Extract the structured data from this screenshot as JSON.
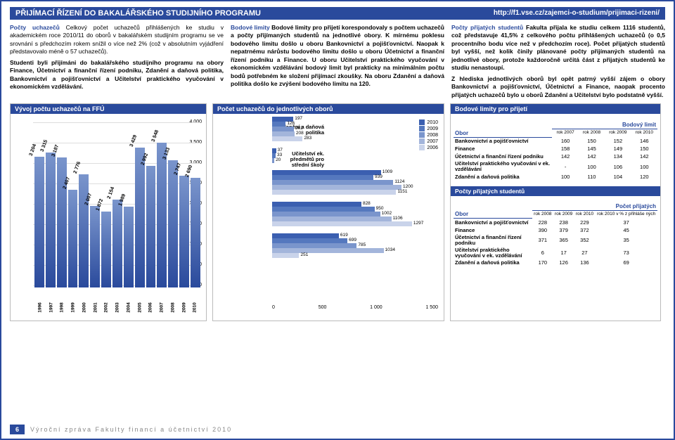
{
  "header": {
    "title": "PŘIJÍMACÍ ŘÍZENÍ DO BAKALÁŘSKÉHO STUDIJNÍHO PROGRAMU",
    "url": "http://f1.vse.cz/zajemci-o-studium/prijimaci-rizeni/"
  },
  "para1_lead": "Počty uchazečů",
  "para1": " Celkový počet uchazečů přihlášených ke studiu v akademickém roce 2010/11 do oborů v bakalářském studijním programu se ve srovnání s předchozím rokem snížil o více než 2% (což v absolutním vyjádření představovalo méně o 57 uchazečů).",
  "para1b": "Studenti byli přijímáni do bakalářského studijního programu na obory Finance, Účetnictví a finanční řízení podniku, Zdanění a daňová politika, Bankovnictví a pojišťovnictví a Učitelství praktického vyučování v ekonomickém vzdělávání.",
  "para2_lead": "Bodové limity",
  "para2": " Bodové limity pro přijetí korespondovaly s počtem uchazečů a počty přijímaných studentů na jednotlivé obory. K mírnému poklesu bodového limitu došlo u oboru Bankovnictví a pojišťovnictví. Naopak k nepatrnému nárůstu bodového limitu došlo u oboru Účetnictví a finanční řízení podniku a Finance. U oboru Učitelství praktického vyučování v ekonomickém vzdělávání bodový limit byl prakticky na minimálním počtu bodů potřebném ke složení přijímací zkoušky. Na oboru Zdanění a daňová politika došlo ke zvýšení bodového limitu na 120.",
  "para3_lead": "Počty přijatých studentů",
  "para3": " Fakulta přijala ke studiu celkem 1116 studentů, což představuje 41,5% z celkového počtu přihlášených uchazečů (o 0,5 procentního bodu více než v předchozím roce). Počet přijatých studentů byl vyšší, než kolik činily plánované počty přijímaných studentů na jednotlivé obory, protože každoročně určitá část z přijatých studentů ke studiu nenastoupí.",
  "para3b": "Z hlediska jednotlivých oborů byl opět patrný vyšší zájem o obory Bankovnictví a pojišťovnictví, Účetnictví a Finance, naopak procento přijatých uchazečů bylo u oborů Zdanění a Učitelství bylo podstatně vyšší.",
  "panel_left_title": "Vývoj počtu uchazečů na FFÚ",
  "panel_mid_title": "Počet uchazečů do jednotlivých oborů",
  "panel_r1_title": "Bodové limity pro přijetí",
  "panel_r2_title": "Počty přijatých studentů",
  "bar_chart": {
    "ymax": 4000,
    "ystep": 500,
    "years": [
      "1996",
      "1997",
      "1998",
      "1999",
      "2000",
      "2001",
      "2002",
      "2003",
      "2004",
      "2005",
      "2006",
      "2007",
      "2008",
      "2009",
      "2010"
    ],
    "values": [
      3204,
      3315,
      3187,
      2407,
      2776,
      2007,
      1872,
      2154,
      1989,
      3429,
      2992,
      3548,
      3133,
      2747,
      2690
    ],
    "bar_color": "#2a4a9c"
  },
  "hbar_chart": {
    "xmax": 1500,
    "categories": [
      "Zdanění a daňová politika",
      "Učitelství ek. předmětů pro střední školy",
      "Účetnictví a finanční řízení podniku",
      "Finance",
      "Bankovnictví a pojišťovnictví"
    ],
    "years": [
      "2010",
      "2009",
      "2008",
      "2007",
      "2006"
    ],
    "colors": {
      "2010": "#3b5fb0",
      "2009": "#5578be",
      "2008": "#7a95cc",
      "2007": "#a3b5db",
      "2006": "#c9d3ea"
    },
    "data": {
      "Zdanění a daňová politika": {
        "2010": 197,
        "2009": 126,
        "2008": 202,
        "2007": 208,
        "2006": 283
      },
      "Učitelství ek. předmětů pro střední školy": {
        "2010": 37,
        "2009": 33,
        "2008": 20
      },
      "Účetnictví a finanční řízení podniku": {
        "2010": 1009,
        "2009": 939,
        "2008": 1124,
        "2007": 1200,
        "2006": 1151
      },
      "Finance": {
        "2010": 828,
        "2009": 950,
        "2008": 1002,
        "2007": 1106,
        "2006": 1297
      },
      "Bankovnictví a pojišťovnictví": {
        "2010": 619,
        "2009": 699,
        "2008": 785,
        "2007": 1034,
        "2006": 251
      }
    }
  },
  "limits_table": {
    "header_right": "Bodový limit",
    "col_obor": "Obor",
    "years": [
      "rok 2007",
      "rok 2008",
      "rok 2009",
      "rok 2010"
    ],
    "rows": [
      [
        "Bankovnictví a pojišťovnictví",
        "160",
        "150",
        "152",
        "146"
      ],
      [
        "Finance",
        "158",
        "145",
        "149",
        "150"
      ],
      [
        "Účetnictví a finanční řízení podniku",
        "142",
        "142",
        "134",
        "142"
      ],
      [
        "Učitelství praktického vyučování v ek. vzdělávání",
        "-",
        "100",
        "106",
        "100"
      ],
      [
        "Zdanění a daňová politika",
        "100",
        "110",
        "104",
        "120"
      ]
    ]
  },
  "accepted_table": {
    "header_right": "Počet přijatých",
    "years": [
      "rok 2008",
      "rok 2009",
      "rok 2010",
      "rok 2010 v % z přihláše ných"
    ],
    "rows": [
      [
        "Bankovnictví a pojišťovnictví",
        "228",
        "238",
        "229",
        "37"
      ],
      [
        "Finance",
        "390",
        "379",
        "372",
        "45"
      ],
      [
        "Účetnictví a finanční řízení podniku",
        "371",
        "365",
        "352",
        "35"
      ],
      [
        "Učitelství praktického vyučování v ek. vzdělávání",
        "6",
        "17",
        "27",
        "73"
      ],
      [
        "Zdanění a daňová politika",
        "170",
        "126",
        "136",
        "69"
      ]
    ]
  },
  "footer_page": "6",
  "footer_text": "Výroční zpráva Fakulty financí a účetnictví 2010"
}
